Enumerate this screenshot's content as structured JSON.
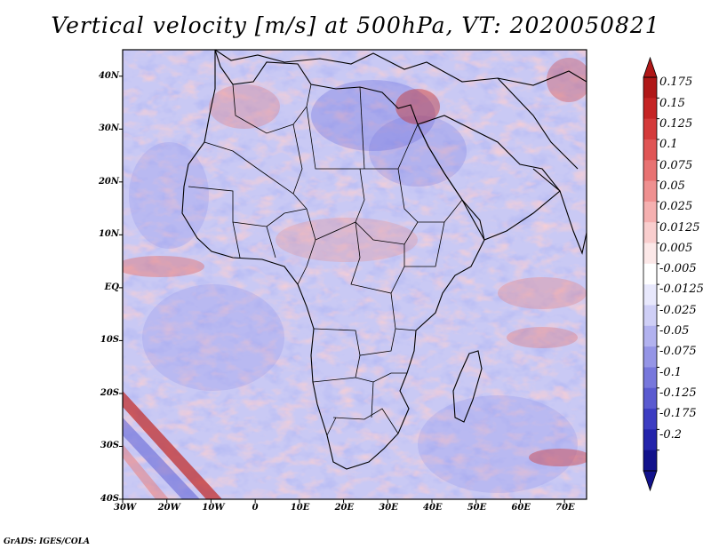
{
  "title": "Vertical velocity [m/s] at 500hPa, VT: 2020050821",
  "credit": "GrADS: IGES/COLA",
  "lat_labels": [
    "40N",
    "30N",
    "20N",
    "10N",
    "EQ",
    "10S",
    "20S",
    "30S",
    "40S"
  ],
  "lat_values": [
    40,
    30,
    20,
    10,
    0,
    -10,
    -20,
    -30,
    -40
  ],
  "lon_labels": [
    "30W",
    "20W",
    "10W",
    "0",
    "10E",
    "20E",
    "30E",
    "40E",
    "50E",
    "60E",
    "70E"
  ],
  "lon_values": [
    -30,
    -20,
    -10,
    0,
    10,
    20,
    30,
    40,
    50,
    60,
    70
  ],
  "extent": {
    "lon_min": -30,
    "lon_max": 75,
    "lat_min": -40,
    "lat_max": 45
  },
  "colorbar": {
    "labels": [
      "0.175",
      "0.15",
      "0.125",
      "0.1",
      "0.075",
      "0.05",
      "0.025",
      "0.0125",
      "0.005",
      "-0.005",
      "-0.0125",
      "-0.025",
      "-0.05",
      "-0.075",
      "-0.1",
      "-0.125",
      "-0.175",
      "-0.2"
    ],
    "colors": [
      "#b01818",
      "#c52424",
      "#d43a3a",
      "#e05555",
      "#e87272",
      "#ef9090",
      "#f5b0b0",
      "#f9cece",
      "#fce8e8",
      "#ffffff",
      "#e8e8fc",
      "#cfcff6",
      "#b2b2ef",
      "#9595e6",
      "#7777dc",
      "#5a5ad0",
      "#3d3dc2",
      "#2424ab",
      "#12128c"
    ],
    "tip_top": "#b01818",
    "tip_bottom": "#12128c"
  }
}
